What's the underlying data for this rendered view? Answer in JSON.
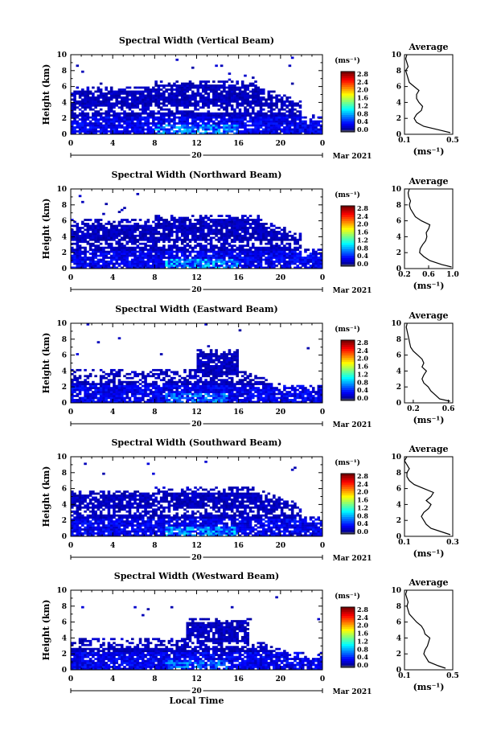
{
  "chart_data": [
    {
      "type": "heatmap",
      "title": "Spectral Width (Vertical Beam)",
      "ylabel": "Height (km)",
      "xlim": [
        0,
        24
      ],
      "ylim": [
        0,
        10
      ],
      "xticks": [
        "0",
        "4",
        "8",
        "12",
        "16",
        "20",
        "0"
      ],
      "yticks": [
        "0",
        "2",
        "4",
        "6",
        "8",
        "10"
      ],
      "day_label": "20",
      "month_label": "Mar 2021",
      "colorbar": {
        "unit": "(ms⁻¹)",
        "ticks": [
          "0.0",
          "0.4",
          "0.8",
          "1.2",
          "1.6",
          "2.0",
          "2.4",
          "2.8"
        ],
        "range": [
          0,
          2.8
        ]
      },
      "coverage": {
        "top_early_km": 6.0,
        "top_mid_km": 6.8,
        "mid_span_h": [
          8,
          18
        ],
        "end_h": 24,
        "enhanced_span_h": [
          8,
          16
        ],
        "enhanced_max": 1.0
      },
      "profile": {
        "title": "Average",
        "xlabel": "(ms⁻¹)",
        "xticks": [
          "0.1",
          "0.5"
        ],
        "xlim": [
          0.1,
          0.5
        ],
        "heights": [
          0.2,
          0.5,
          1,
          1.5,
          2,
          2.5,
          3,
          3.5,
          4,
          4.5,
          5,
          5.5,
          6,
          6.5,
          7,
          7.5,
          8,
          8.5,
          9,
          9.5,
          10
        ],
        "values": [
          0.48,
          0.4,
          0.26,
          0.2,
          0.18,
          0.2,
          0.24,
          0.25,
          0.22,
          0.2,
          0.2,
          0.22,
          0.18,
          0.14,
          0.13,
          0.12,
          0.11,
          0.13,
          0.12,
          0.11,
          0.12
        ]
      }
    },
    {
      "type": "heatmap",
      "title": "Spectral Width (Northward Beam)",
      "ylabel": "Height (km)",
      "xlim": [
        0,
        24
      ],
      "ylim": [
        0,
        10
      ],
      "xticks": [
        "0",
        "4",
        "8",
        "12",
        "16",
        "20",
        "0"
      ],
      "yticks": [
        "0",
        "2",
        "4",
        "6",
        "8",
        "10"
      ],
      "day_label": "20",
      "month_label": "Mar 2021",
      "colorbar": {
        "unit": "(ms⁻¹)",
        "ticks": [
          "0.0",
          "0.4",
          "0.8",
          "1.2",
          "1.6",
          "2.0",
          "2.4",
          "2.8"
        ],
        "range": [
          0,
          2.8
        ]
      },
      "coverage": {
        "top_early_km": 6.2,
        "top_mid_km": 6.8,
        "mid_span_h": [
          8,
          18
        ],
        "end_h": 24,
        "enhanced_span_h": [
          9,
          16
        ],
        "enhanced_max": 1.1
      },
      "profile": {
        "title": "Average",
        "xlabel": "(ms⁻¹)",
        "xticks": [
          "0.2",
          "0.6",
          "1.0"
        ],
        "xlim": [
          0.2,
          1.0
        ],
        "heights": [
          0.2,
          0.5,
          1,
          1.5,
          2,
          2.5,
          3,
          3.5,
          4,
          4.5,
          5,
          5.5,
          6,
          6.5,
          7,
          7.5,
          8,
          8.5,
          9,
          9.5,
          10
        ],
        "values": [
          0.98,
          0.82,
          0.62,
          0.52,
          0.45,
          0.46,
          0.5,
          0.55,
          0.57,
          0.56,
          0.6,
          0.62,
          0.48,
          0.38,
          0.34,
          0.3,
          0.28,
          0.3,
          0.27,
          0.26,
          0.28
        ]
      }
    },
    {
      "type": "heatmap",
      "title": "Spectral Width (Eastward Beam)",
      "ylabel": "Height (km)",
      "xlim": [
        0,
        24
      ],
      "ylim": [
        0,
        10
      ],
      "xticks": [
        "0",
        "4",
        "8",
        "12",
        "16",
        "20",
        "0"
      ],
      "yticks": [
        "0",
        "2",
        "4",
        "6",
        "8",
        "10"
      ],
      "day_label": "20",
      "month_label": "Mar 2021",
      "colorbar": {
        "unit": "(ms⁻¹)",
        "ticks": [
          "0.0",
          "0.4",
          "0.8",
          "1.2",
          "1.6",
          "2.0",
          "2.4",
          "2.8"
        ],
        "range": [
          0,
          2.8
        ]
      },
      "coverage": {
        "top_early_km": 4.2,
        "top_mid_km": 6.8,
        "mid_span_h": [
          12,
          16
        ],
        "end_h": 24,
        "enhanced_span_h": [
          9,
          15
        ],
        "enhanced_max": 0.9
      },
      "profile": {
        "title": "Average",
        "xlabel": "(ms⁻¹)",
        "xticks": [
          "0.2",
          "0.6"
        ],
        "xlim": [
          0.1,
          0.65
        ],
        "heights": [
          0.2,
          0.5,
          1,
          1.5,
          2,
          2.5,
          3,
          3.5,
          4,
          4.5,
          5,
          5.5,
          6,
          6.5,
          7,
          7.5,
          8,
          8.5,
          9,
          9.5,
          10
        ],
        "values": [
          0.62,
          0.5,
          0.45,
          0.4,
          0.37,
          0.32,
          0.3,
          0.32,
          0.35,
          0.3,
          0.32,
          0.3,
          0.25,
          0.2,
          0.17,
          0.16,
          0.15,
          0.14,
          0.13,
          0.12,
          0.13
        ]
      }
    },
    {
      "type": "heatmap",
      "title": "Spectral Width (Southward Beam)",
      "ylabel": "Height (km)",
      "xlim": [
        0,
        24
      ],
      "ylim": [
        0,
        10
      ],
      "xticks": [
        "0",
        "4",
        "8",
        "12",
        "16",
        "20",
        "0"
      ],
      "yticks": [
        "0",
        "2",
        "4",
        "6",
        "8",
        "10"
      ],
      "day_label": "20",
      "month_label": "Mar 2021",
      "colorbar": {
        "unit": "(ms⁻¹)",
        "ticks": [
          "0.0",
          "0.4",
          "0.8",
          "1.2",
          "1.6",
          "2.0",
          "2.4",
          "2.8"
        ],
        "range": [
          0,
          2.8
        ]
      },
      "coverage": {
        "top_early_km": 5.8,
        "top_mid_km": 6.2,
        "mid_span_h": [
          8,
          18
        ],
        "end_h": 24,
        "enhanced_span_h": [
          9,
          16
        ],
        "enhanced_max": 1.0
      },
      "profile": {
        "title": "Average",
        "xlabel": "(ms⁻¹)",
        "xticks": [
          "0.1",
          "0.3"
        ],
        "xlim": [
          0.1,
          0.3
        ],
        "heights": [
          0.2,
          0.5,
          1,
          1.5,
          2,
          2.5,
          3,
          3.5,
          4,
          4.5,
          5,
          5.5,
          6,
          6.5,
          7,
          7.5,
          8,
          8.5,
          9,
          9.5,
          10
        ],
        "values": [
          0.29,
          0.26,
          0.21,
          0.19,
          0.18,
          0.17,
          0.18,
          0.2,
          0.21,
          0.19,
          0.21,
          0.22,
          0.18,
          0.14,
          0.12,
          0.11,
          0.11,
          0.12,
          0.11,
          0.1,
          0.11
        ]
      }
    },
    {
      "type": "heatmap",
      "title": "Spectral Width (Westward Beam)",
      "ylabel": "Height (km)",
      "xlabel": "Local Time",
      "xlim": [
        0,
        24
      ],
      "ylim": [
        0,
        10
      ],
      "xticks": [
        "0",
        "4",
        "8",
        "12",
        "16",
        "20",
        "0"
      ],
      "yticks": [
        "0",
        "2",
        "4",
        "6",
        "8",
        "10"
      ],
      "day_label": "20",
      "month_label": "Mar 2021",
      "colorbar": {
        "unit": "(ms⁻¹)",
        "ticks": [
          "0.0",
          "0.4",
          "0.8",
          "1.2",
          "1.6",
          "2.0",
          "2.4",
          "2.8"
        ],
        "range": [
          0,
          2.8
        ]
      },
      "coverage": {
        "top_early_km": 4.0,
        "top_mid_km": 6.6,
        "mid_span_h": [
          11,
          17
        ],
        "end_h": 24,
        "enhanced_span_h": [
          9,
          15
        ],
        "enhanced_max": 0.9
      },
      "profile": {
        "title": "Average",
        "xlabel": "(ms⁻¹)",
        "xticks": [
          "0.1",
          "0.5"
        ],
        "xlim": [
          0.1,
          0.5
        ],
        "heights": [
          0.2,
          0.5,
          1,
          1.5,
          2,
          2.5,
          3,
          3.5,
          4,
          4.5,
          5,
          5.5,
          6,
          6.5,
          7,
          7.5,
          8,
          8.5,
          9,
          9.5,
          10
        ],
        "values": [
          0.44,
          0.38,
          0.3,
          0.28,
          0.26,
          0.27,
          0.29,
          0.3,
          0.31,
          0.27,
          0.26,
          0.24,
          0.2,
          0.17,
          0.14,
          0.13,
          0.12,
          0.13,
          0.12,
          0.11,
          0.12
        ]
      }
    }
  ]
}
